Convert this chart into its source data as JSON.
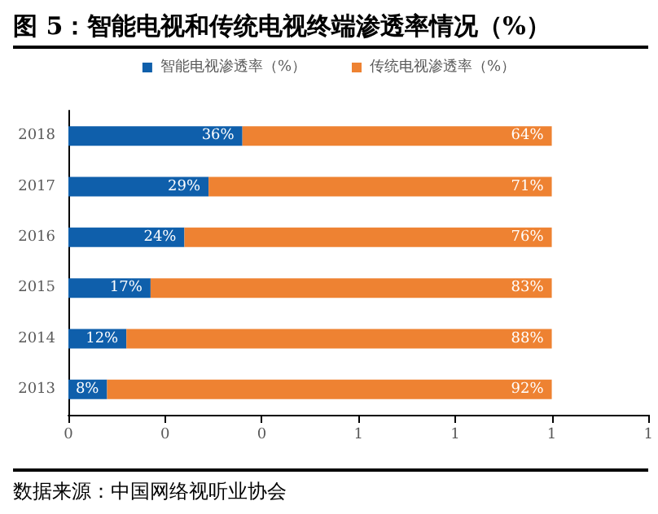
{
  "chart_data": {
    "type": "bar",
    "orientation": "horizontal",
    "stacked": true,
    "title": "图 5：智能电视和传统电视终端渗透率情况（%）",
    "annotations": [
      "数据来源：中国网络视听业协会"
    ],
    "categories": [
      "2018",
      "2017",
      "2016",
      "2015",
      "2014",
      "2013"
    ],
    "series": [
      {
        "name": "智能电视渗透率（%）",
        "color": "#0f5fab",
        "values": [
          0.36,
          0.29,
          0.24,
          0.17,
          0.12,
          0.08
        ],
        "value_labels": [
          "36%",
          "29%",
          "24%",
          "17%",
          "12%",
          "8%"
        ]
      },
      {
        "name": "传统电视渗透率（%）",
        "color": "#ee8232",
        "values": [
          0.64,
          0.71,
          0.76,
          0.83,
          0.88,
          0.92
        ],
        "value_labels": [
          "64%",
          "71%",
          "76%",
          "83%",
          "88%",
          "92%"
        ]
      }
    ],
    "xlim": [
      0,
      1.2
    ],
    "xticks": [
      0,
      {
        "value": 0.2,
        "label": "0"
      },
      {
        "value": 0.4,
        "label": "0"
      },
      {
        "value": 0.6,
        "label": "1"
      },
      {
        "value": 0.8,
        "label": "1"
      },
      {
        "value": 1,
        "label": "1"
      },
      {
        "value": 1.2,
        "label": "1"
      }
    ],
    "grid": false,
    "legend": "top"
  }
}
